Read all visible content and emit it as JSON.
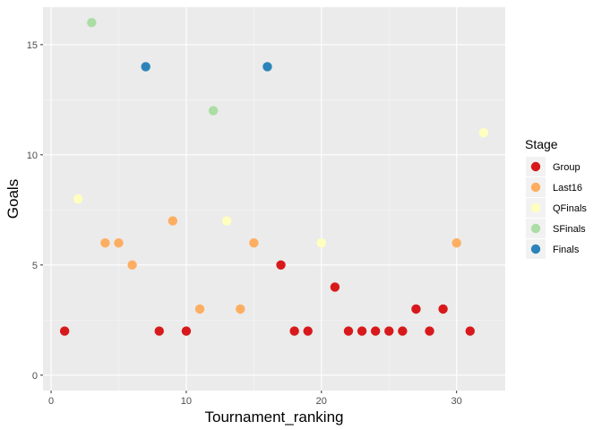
{
  "chart_data": {
    "type": "scatter",
    "xlabel": "Tournament_ranking",
    "ylabel": "Goals",
    "xlim": [
      -0.6,
      33.6
    ],
    "ylim": [
      -0.7,
      16.7
    ],
    "xticks": [
      0,
      10,
      20,
      30
    ],
    "yticks": [
      0,
      5,
      10,
      15
    ],
    "grid": true,
    "legend": {
      "title": "Stage",
      "position": "right"
    },
    "series": [
      {
        "name": "Group",
        "color": "#d7191c",
        "points": [
          [
            1,
            2
          ],
          [
            8,
            2
          ],
          [
            10,
            2
          ],
          [
            17,
            5
          ],
          [
            18,
            2
          ],
          [
            19,
            2
          ],
          [
            21,
            4
          ],
          [
            22,
            2
          ],
          [
            23,
            2
          ],
          [
            24,
            2
          ],
          [
            25,
            2
          ],
          [
            26,
            2
          ],
          [
            27,
            3
          ],
          [
            28,
            2
          ],
          [
            29,
            3
          ],
          [
            31,
            2
          ]
        ]
      },
      {
        "name": "Last16",
        "color": "#fdae61",
        "points": [
          [
            4,
            6
          ],
          [
            5,
            6
          ],
          [
            6,
            5
          ],
          [
            9,
            7
          ],
          [
            11,
            3
          ],
          [
            14,
            3
          ],
          [
            15,
            6
          ],
          [
            30,
            6
          ]
        ]
      },
      {
        "name": "QFinals",
        "color": "#ffffbf",
        "points": [
          [
            2,
            8
          ],
          [
            13,
            7
          ],
          [
            20,
            6
          ],
          [
            32,
            11
          ]
        ]
      },
      {
        "name": "SFinals",
        "color": "#abdda4",
        "points": [
          [
            3,
            16
          ],
          [
            12,
            12
          ]
        ]
      },
      {
        "name": "Finals",
        "color": "#2b83ba",
        "points": [
          [
            7,
            14
          ],
          [
            16,
            14
          ]
        ]
      }
    ]
  }
}
